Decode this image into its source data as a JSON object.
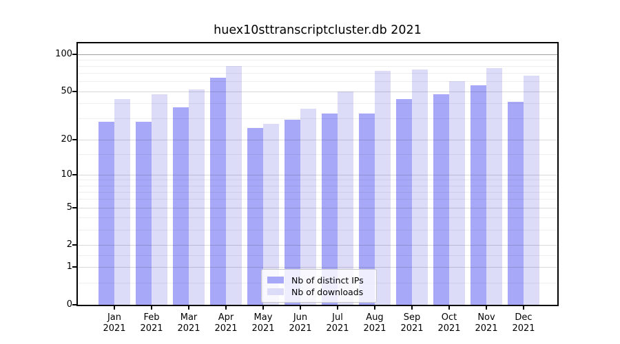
{
  "title": "huex10sttranscriptcluster.db 2021",
  "chart_data": {
    "type": "bar",
    "title": "huex10sttranscriptcluster.db 2021",
    "categories": [
      "Jan",
      "Feb",
      "Mar",
      "Apr",
      "May",
      "Jun",
      "Jul",
      "Aug",
      "Sep",
      "Oct",
      "Nov",
      "Dec"
    ],
    "category_year": "2021",
    "series": [
      {
        "name": "Nb of distinct IPs",
        "color": "#a8a8f8",
        "values": [
          28,
          28,
          37,
          64,
          25,
          29,
          33,
          33,
          43,
          47,
          56,
          41
        ]
      },
      {
        "name": "Nb of downloads",
        "color": "#dcdcf8",
        "values": [
          43,
          47,
          52,
          80,
          27,
          36,
          50,
          73,
          75,
          60,
          77,
          67
        ]
      }
    ],
    "xlabel": "",
    "ylabel": "",
    "yscale": "log1p",
    "ylim": [
      0,
      122
    ],
    "yticks": [
      100,
      50,
      20,
      10,
      5,
      2,
      1,
      0
    ],
    "yticks_minor": [
      0.5,
      1.5,
      3,
      4,
      6,
      7,
      8,
      9,
      15,
      30,
      40,
      60,
      70,
      80,
      90
    ],
    "grid": true,
    "grid_over_bars": true,
    "legend_position": "bottom-center",
    "background_color": "#ffffff",
    "strong_gridline_value": 100
  }
}
